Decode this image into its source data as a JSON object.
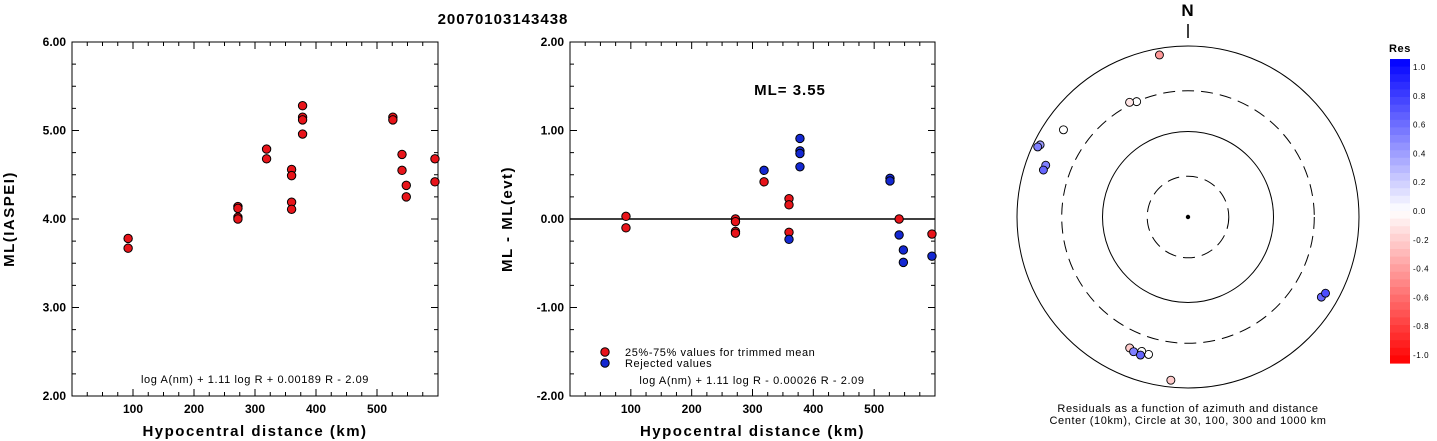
{
  "page_title": "20070103143438",
  "chart_data": [
    {
      "type": "scatter",
      "xlabel": "Hypocentral distance (km)",
      "ylabel": "ML(IASPEI)",
      "xlim": [
        0,
        600
      ],
      "ylim": [
        2.0,
        6.0
      ],
      "x_ticks": [
        100,
        200,
        300,
        400,
        500
      ],
      "y_ticks": [
        2.0,
        3.0,
        4.0,
        5.0,
        6.0
      ],
      "y_tick_labels": [
        "2.00",
        "3.00",
        "4.00",
        "5.00",
        "6.00"
      ],
      "annotation": "log A(nm) + 1.11 log R + 0.00189 R - 2.09",
      "marker_color": "#e8141a",
      "points": [
        [
          92,
          3.78
        ],
        [
          92,
          3.67
        ],
        [
          272,
          4.14
        ],
        [
          272,
          4.12
        ],
        [
          272,
          4.02
        ],
        [
          272,
          4.0
        ],
        [
          319,
          4.79
        ],
        [
          319,
          4.68
        ],
        [
          360,
          4.56
        ],
        [
          360,
          4.49
        ],
        [
          360,
          4.19
        ],
        [
          360,
          4.11
        ],
        [
          378,
          5.28
        ],
        [
          378,
          5.15
        ],
        [
          378,
          5.12
        ],
        [
          378,
          4.96
        ],
        [
          526,
          5.15
        ],
        [
          526,
          5.12
        ],
        [
          541,
          4.73
        ],
        [
          541,
          4.55
        ],
        [
          548,
          4.38
        ],
        [
          548,
          4.25
        ],
        [
          595,
          4.68
        ],
        [
          595,
          4.42
        ]
      ]
    },
    {
      "type": "scatter",
      "xlabel": "Hypocentral distance (km)",
      "ylabel": "ML - ML(evt)",
      "xlim": [
        0,
        600
      ],
      "ylim": [
        -2.0,
        2.0
      ],
      "x_ticks": [
        100,
        200,
        300,
        400,
        500
      ],
      "y_ticks": [
        -2.0,
        -1.0,
        0.0,
        1.0,
        2.0
      ],
      "y_tick_labels": [
        "-2.00",
        "-1.00",
        "0.00",
        "1.00",
        "2.00"
      ],
      "ml_label": "ML= 3.55",
      "annotation": "log A(nm) + 1.11 log R - 0.00026 R - 2.09",
      "legend": [
        {
          "label": "25%-75% values for trimmed mean",
          "color": "#e8141a"
        },
        {
          "label": "Rejected values",
          "color": "#1428d2"
        }
      ],
      "accepted_points": [
        [
          92,
          0.03
        ],
        [
          92,
          -0.1
        ],
        [
          272,
          0.0
        ],
        [
          272,
          -0.03
        ],
        [
          272,
          -0.14
        ],
        [
          272,
          -0.16
        ],
        [
          319,
          0.42
        ],
        [
          360,
          0.23
        ],
        [
          360,
          0.16
        ],
        [
          360,
          -0.15
        ],
        [
          541,
          0.0
        ],
        [
          595,
          -0.17
        ]
      ],
      "rejected_points": [
        [
          319,
          0.55
        ],
        [
          360,
          -0.23
        ],
        [
          378,
          0.91
        ],
        [
          378,
          0.77
        ],
        [
          378,
          0.74
        ],
        [
          378,
          0.59
        ],
        [
          526,
          0.46
        ],
        [
          526,
          0.43
        ],
        [
          541,
          -0.18
        ],
        [
          548,
          -0.35
        ],
        [
          548,
          -0.49
        ],
        [
          595,
          -0.42
        ]
      ]
    },
    {
      "type": "polar_scatter",
      "north_label": "N",
      "caption_line1": "Residuals as a function of azimuth and distance",
      "caption_line2": "Center (10km), Circle at 30, 100, 300 and 1000 km",
      "colorbar_title": "Res",
      "colorbar_ticks": [
        "1.0",
        "0.8",
        "0.6",
        "0.4",
        "0.2",
        "0.0",
        "-0.2",
        "-0.4",
        "-0.6",
        "-0.8",
        "-1.0"
      ],
      "rings_km": [
        30,
        100,
        300,
        1000
      ],
      "stations": [
        {
          "az": 350,
          "dist": 840,
          "res": -0.4
        },
        {
          "az": 305,
          "dist": 600,
          "res": 0.0
        },
        {
          "az": 296,
          "dist": 840,
          "res": 0.4
        },
        {
          "az": 295,
          "dist": 870,
          "res": 0.5
        },
        {
          "az": 290,
          "dist": 590,
          "res": 0.5
        },
        {
          "az": 288,
          "dist": 600,
          "res": 0.6
        },
        {
          "az": 336,
          "dist": 300,
          "res": 0.0
        },
        {
          "az": 333,
          "dist": 320,
          "res": -0.1
        },
        {
          "az": 121,
          "dist": 660,
          "res": 0.6
        },
        {
          "az": 119,
          "dist": 690,
          "res": 0.7
        },
        {
          "az": 196,
          "dist": 470,
          "res": 0.0
        },
        {
          "az": 199,
          "dist": 460,
          "res": 0.0
        },
        {
          "az": 204,
          "dist": 475,
          "res": -0.2
        },
        {
          "az": 202,
          "dist": 500,
          "res": 0.5
        },
        {
          "az": 199,
          "dist": 510,
          "res": 0.6
        },
        {
          "az": 186,
          "dist": 830,
          "res": -0.2
        }
      ]
    }
  ]
}
